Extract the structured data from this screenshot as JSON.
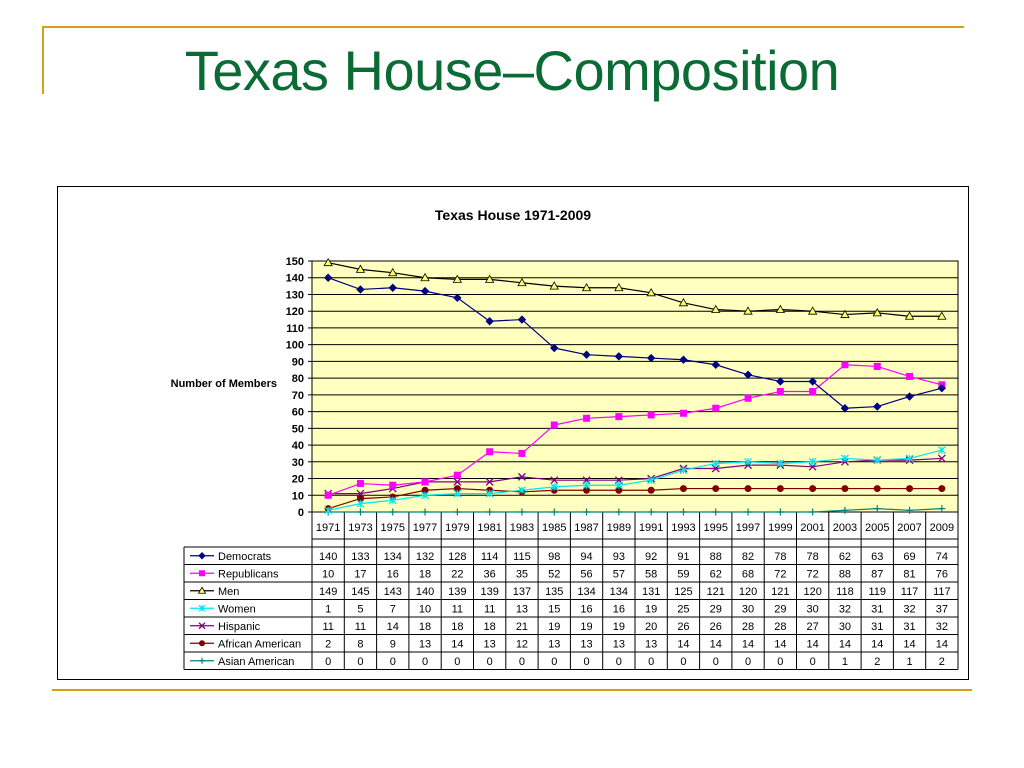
{
  "slide": {
    "title": "Texas House–Composition"
  },
  "chart_data": {
    "type": "line",
    "title": "Texas House 1971-2009",
    "ylabel": "Number of Members",
    "xlabel": "",
    "ylim": [
      0,
      150
    ],
    "yticks": [
      0,
      10,
      20,
      30,
      40,
      50,
      60,
      70,
      80,
      90,
      100,
      110,
      120,
      130,
      140,
      150
    ],
    "grid": true,
    "legend": "data-table",
    "categories": [
      "1971",
      "1973",
      "1975",
      "1977",
      "1979",
      "1981",
      "1983",
      "1985",
      "1987",
      "1989",
      "1991",
      "1993",
      "1995",
      "1997",
      "1999",
      "2001",
      "2003",
      "2005",
      "2007",
      "2009"
    ],
    "series": [
      {
        "name": "Democrats",
        "color": "#000080",
        "marker": "diamond",
        "values": [
          140,
          133,
          134,
          132,
          128,
          114,
          115,
          98,
          94,
          93,
          92,
          91,
          88,
          82,
          78,
          78,
          62,
          63,
          69,
          74
        ]
      },
      {
        "name": "Republicans",
        "color": "#ff00ff",
        "marker": "square",
        "values": [
          10,
          17,
          16,
          18,
          22,
          36,
          35,
          52,
          56,
          57,
          58,
          59,
          62,
          68,
          72,
          72,
          88,
          87,
          81,
          76
        ]
      },
      {
        "name": "Men",
        "color": "#000000",
        "marker": "triangle",
        "values": [
          149,
          145,
          143,
          140,
          139,
          139,
          137,
          135,
          134,
          134,
          131,
          125,
          121,
          120,
          121,
          120,
          118,
          119,
          117,
          117
        ]
      },
      {
        "name": "Women",
        "color": "#00e5ee",
        "marker": "star",
        "values": [
          1,
          5,
          7,
          10,
          11,
          11,
          13,
          15,
          16,
          16,
          19,
          25,
          29,
          30,
          29,
          30,
          32,
          31,
          32,
          37
        ]
      },
      {
        "name": "Hispanic",
        "color": "#800080",
        "marker": "x",
        "values": [
          11,
          11,
          14,
          18,
          18,
          18,
          21,
          19,
          19,
          19,
          20,
          26,
          26,
          28,
          28,
          27,
          30,
          31,
          31,
          32
        ]
      },
      {
        "name": "African American",
        "color": "#800000",
        "marker": "circle",
        "values": [
          2,
          8,
          9,
          13,
          14,
          13,
          12,
          13,
          13,
          13,
          13,
          14,
          14,
          14,
          14,
          14,
          14,
          14,
          14,
          14
        ]
      },
      {
        "name": "Asian American",
        "color": "#008080",
        "marker": "plus",
        "values": [
          0,
          0,
          0,
          0,
          0,
          0,
          0,
          0,
          0,
          0,
          0,
          0,
          0,
          0,
          0,
          0,
          1,
          2,
          1,
          2
        ]
      }
    ],
    "plot_background": "#ffffc0"
  }
}
